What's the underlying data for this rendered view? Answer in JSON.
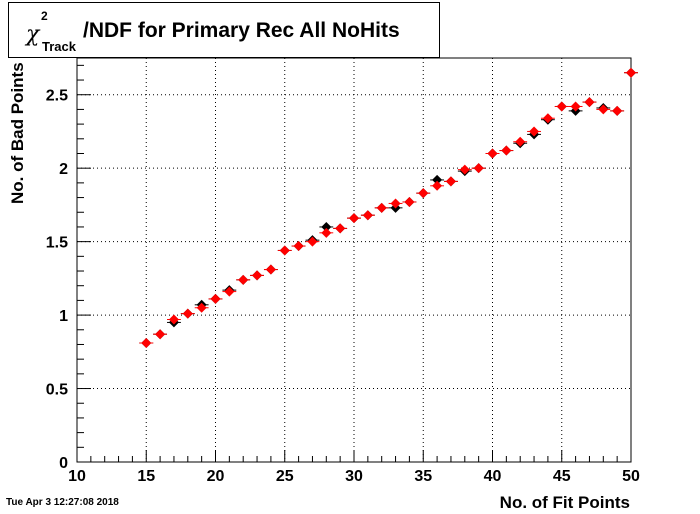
{
  "title": {
    "chi": "χ",
    "sup": "2",
    "sub": "Track",
    "main": "/NDF for Primary Rec All NoHits"
  },
  "timestamp": "Tue Apr  3 12:27:08 2018",
  "chart_data": {
    "type": "scatter",
    "title": "χ2Track/NDF for Primary Rec All NoHits",
    "xlabel": "No. of Fit Points",
    "ylabel": "No. of Bad Points",
    "xlim": [
      10,
      50
    ],
    "ylim": [
      0,
      2.75
    ],
    "grid": true,
    "x_ticks": [
      10,
      15,
      20,
      25,
      30,
      35,
      40,
      45,
      50
    ],
    "y_ticks": [
      0,
      0.5,
      1,
      1.5,
      2,
      2.5
    ],
    "y_tick_labels": [
      "0",
      "0.5",
      "1",
      "1.5",
      "2",
      "2.5"
    ],
    "series": [
      {
        "color": "#000000",
        "x": [
          15,
          16,
          17,
          18,
          19,
          20,
          21,
          22,
          23,
          24,
          25,
          26,
          27,
          28,
          29,
          30,
          31,
          32,
          33,
          34,
          35,
          36,
          37,
          38,
          39,
          40,
          41,
          42,
          43,
          44,
          45,
          46,
          47,
          48,
          49,
          50
        ],
        "y": [
          0.81,
          0.87,
          0.95,
          1.01,
          1.07,
          1.11,
          1.17,
          1.24,
          1.27,
          1.31,
          1.44,
          1.47,
          1.51,
          1.6,
          1.59,
          1.66,
          1.68,
          1.73,
          1.73,
          1.77,
          1.83,
          1.92,
          1.91,
          1.98,
          2.0,
          2.1,
          2.12,
          2.17,
          2.23,
          2.33,
          2.42,
          2.39,
          2.45,
          2.41,
          2.39,
          2.65
        ]
      },
      {
        "color": "#ff0000",
        "x": [
          15,
          16,
          17,
          18,
          19,
          20,
          21,
          22,
          23,
          24,
          25,
          26,
          27,
          28,
          29,
          30,
          31,
          32,
          33,
          34,
          35,
          36,
          37,
          38,
          39,
          40,
          41,
          42,
          43,
          44,
          45,
          46,
          47,
          48,
          49,
          50
        ],
        "y": [
          0.81,
          0.87,
          0.97,
          1.01,
          1.05,
          1.11,
          1.16,
          1.24,
          1.27,
          1.31,
          1.44,
          1.47,
          1.5,
          1.56,
          1.59,
          1.66,
          1.68,
          1.73,
          1.76,
          1.77,
          1.83,
          1.88,
          1.91,
          1.99,
          2.0,
          2.1,
          2.12,
          2.18,
          2.25,
          2.34,
          2.42,
          2.42,
          2.45,
          2.4,
          2.39,
          2.65
        ]
      }
    ]
  }
}
